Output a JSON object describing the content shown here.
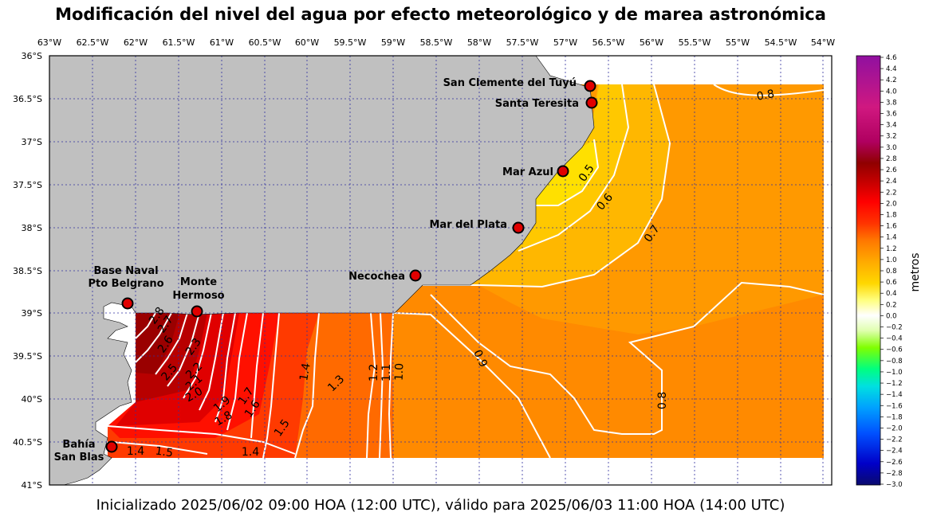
{
  "title": "Modificación del nivel del agua por efecto meteorológico y de marea astronómica",
  "footer": "Inicializado 2025/06/02 09:00 HOA (12:00 UTC), válido para 2025/06/03 11:00 HOA (14:00 UTC)",
  "lon_ticks": [
    "63°W",
    "62.5°W",
    "62°W",
    "61.5°W",
    "61°W",
    "60.5°W",
    "60°W",
    "59.5°W",
    "59°W",
    "58.5°W",
    "58°W",
    "57.5°W",
    "57°W",
    "56.5°W",
    "56°W",
    "55.5°W",
    "55°W",
    "54.5°W",
    "54°W"
  ],
  "lat_ticks": [
    "36°S",
    "36.5°S",
    "37°S",
    "37.5°S",
    "38°S",
    "38.5°S",
    "39°S",
    "39.5°S",
    "40°S",
    "40.5°S",
    "41°S"
  ],
  "stations": [
    {
      "name": "San Clemente del Tuyú"
    },
    {
      "name": "Santa Teresita"
    },
    {
      "name": "Mar Azul"
    },
    {
      "name": "Mar del Plata"
    },
    {
      "name": "Necochea"
    },
    {
      "name": "Base Naval",
      "name2": "Pto Belgrano"
    },
    {
      "name": "Monte",
      "name2": "Hermoso"
    },
    {
      "name": "Bahía",
      "name2": "San Blas"
    }
  ],
  "contour_labels": [
    "0.8",
    "0.5",
    "0.6",
    "0.7",
    "0.9",
    "0.8",
    "2.8",
    "2.7",
    "2.6",
    "2.3",
    "2.5",
    "2.2",
    "2.1",
    "2.0",
    "1.9",
    "1.8",
    "1.7",
    "1.6",
    "1.5",
    "1.4",
    "1.3",
    "1.2",
    "1.1",
    "1.0",
    "1.4",
    "1.5",
    "1.4"
  ],
  "colorbar": {
    "label": "metros",
    "ticks": [
      "4.6",
      "4.4",
      "4.2",
      "4.0",
      "3.8",
      "3.6",
      "3.4",
      "3.2",
      "3.0",
      "2.8",
      "2.6",
      "2.4",
      "2.2",
      "2.0",
      "1.8",
      "1.6",
      "1.4",
      "1.2",
      "1.0",
      "0.8",
      "0.6",
      "0.4",
      "0.2",
      "0.0",
      "−0.2",
      "−0.4",
      "−0.6",
      "−0.8",
      "−1.0",
      "−1.2",
      "−1.4",
      "−1.6",
      "−1.8",
      "−2.0",
      "−2.2",
      "−2.4",
      "−2.6",
      "−2.8",
      "−3.0"
    ],
    "stops": [
      "#0a0a6e",
      "#0000c8",
      "#0050ff",
      "#00a0ff",
      "#00e0e0",
      "#00ff80",
      "#80ff00",
      "#e0ffb0",
      "#ffffff",
      "#ffff80",
      "#ffd700",
      "#ffaa00",
      "#ff7700",
      "#ff3300",
      "#ff0000",
      "#c00000",
      "#900000",
      "#b00060",
      "#d01880",
      "#9010a0"
    ]
  }
}
